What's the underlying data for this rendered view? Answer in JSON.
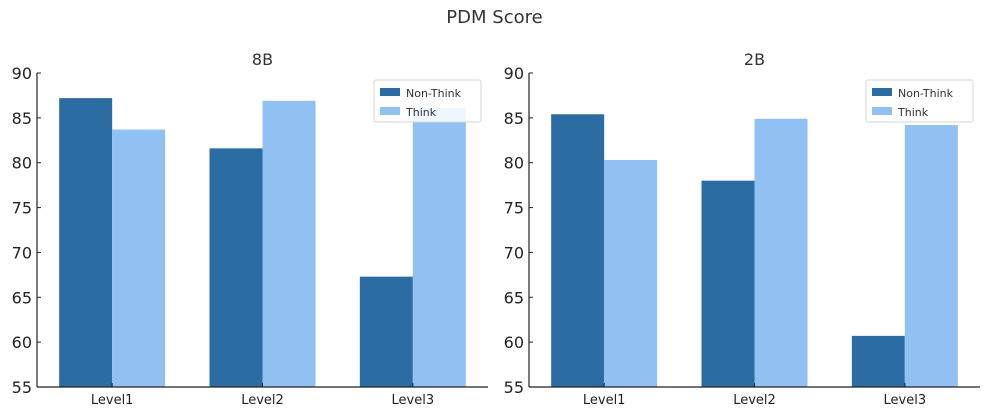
{
  "figure": {
    "title": "PDM Score"
  },
  "colors": {
    "non_think": "#2b6ca3",
    "think": "#91c1f2",
    "axis": "#222222",
    "text": "#333333"
  },
  "chart_data": [
    {
      "type": "bar",
      "title": "8B",
      "categories": [
        "Level1",
        "Level2",
        "Level3"
      ],
      "series": [
        {
          "name": "Non-Think",
          "values": [
            87.2,
            81.6,
            67.3
          ]
        },
        {
          "name": "Think",
          "values": [
            83.7,
            86.9,
            86.1
          ]
        }
      ],
      "ylim": [
        55,
        90
      ],
      "yticks": [
        55,
        60,
        65,
        70,
        75,
        80,
        85,
        90
      ],
      "xlabel": "",
      "ylabel": "",
      "grid": false,
      "legend": "top-right"
    },
    {
      "type": "bar",
      "title": "2B",
      "categories": [
        "Level1",
        "Level2",
        "Level3"
      ],
      "series": [
        {
          "name": "Non-Think",
          "values": [
            85.4,
            78.0,
            60.7
          ]
        },
        {
          "name": "Think",
          "values": [
            80.3,
            84.9,
            84.2
          ]
        }
      ],
      "ylim": [
        55,
        90
      ],
      "yticks": [
        55,
        60,
        65,
        70,
        75,
        80,
        85,
        90
      ],
      "xlabel": "",
      "ylabel": "",
      "grid": false,
      "legend": "top-right"
    }
  ]
}
